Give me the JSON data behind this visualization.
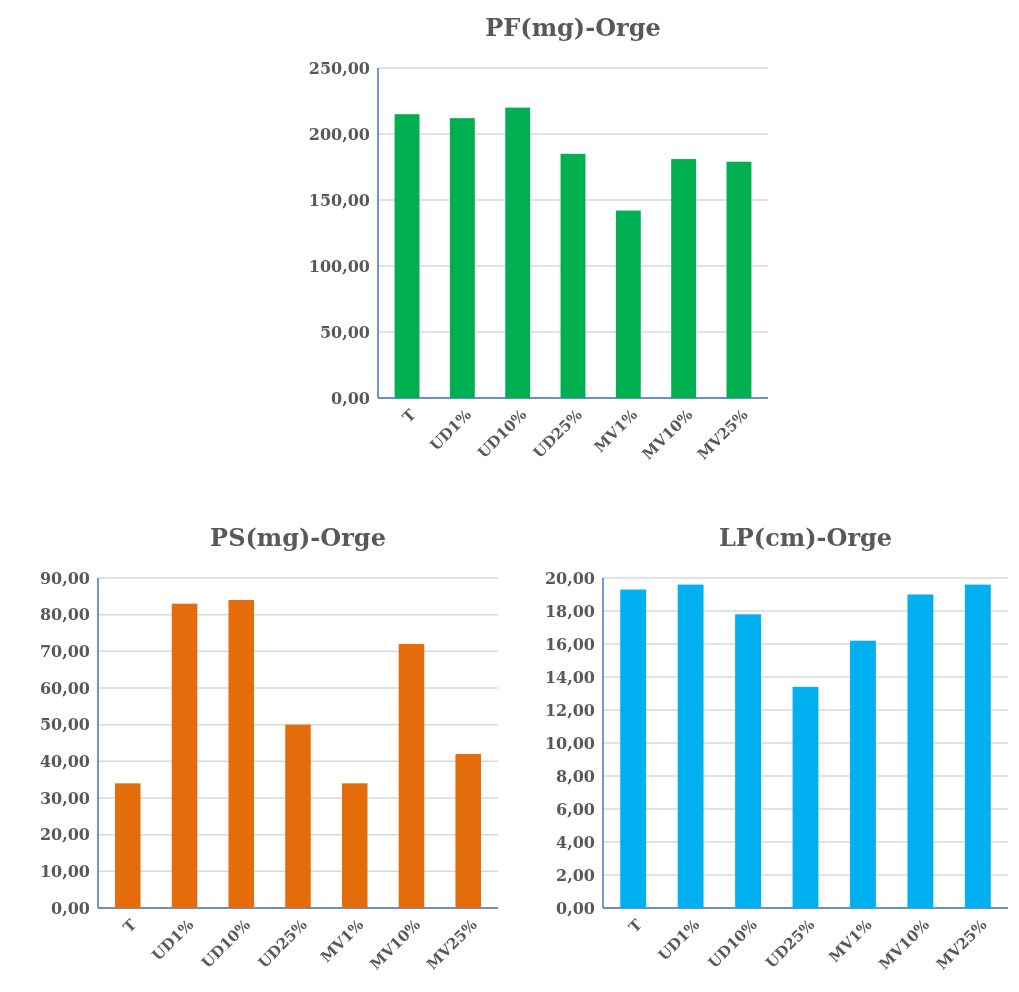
{
  "chart_data": [
    {
      "type": "bar",
      "title": "PF(mg)-Orge",
      "categories": [
        "T",
        "UD1%",
        "UD10%",
        "UD25%",
        "MV1%",
        "MV10%",
        "MV25%"
      ],
      "values": [
        215,
        212,
        220,
        185,
        142,
        181,
        179
      ],
      "color": "#00b050",
      "ylim": [
        0,
        250
      ],
      "yticks": [
        {
          "value": 0,
          "label": "0,00"
        },
        {
          "value": 50,
          "label": "50,00"
        },
        {
          "value": 100,
          "label": "100,00"
        },
        {
          "value": 150,
          "label": "150,00"
        },
        {
          "value": 200,
          "label": "200,00"
        },
        {
          "value": 250,
          "label": "250,00"
        }
      ],
      "grid": "y"
    },
    {
      "type": "bar",
      "title": "PS(mg)-Orge",
      "categories": [
        "T",
        "UD1%",
        "UD10%",
        "UD25%",
        "MV1%",
        "MV10%",
        "MV25%"
      ],
      "values": [
        34,
        83,
        84,
        50,
        34,
        72,
        42
      ],
      "color": "#e46c0a",
      "ylim": [
        0,
        90
      ],
      "yticks": [
        {
          "value": 0,
          "label": "0,00"
        },
        {
          "value": 10,
          "label": "10,00"
        },
        {
          "value": 20,
          "label": "20,00"
        },
        {
          "value": 30,
          "label": "30,00"
        },
        {
          "value": 40,
          "label": "40,00"
        },
        {
          "value": 50,
          "label": "50,00"
        },
        {
          "value": 60,
          "label": "60,00"
        },
        {
          "value": 70,
          "label": "70,00"
        },
        {
          "value": 80,
          "label": "80,00"
        },
        {
          "value": 90,
          "label": "90,00"
        }
      ],
      "grid": "y"
    },
    {
      "type": "bar",
      "title": "LP(cm)-Orge",
      "categories": [
        "T",
        "UD1%",
        "UD10%",
        "UD25%",
        "MV1%",
        "MV10%",
        "MV25%"
      ],
      "values": [
        19.3,
        19.6,
        17.8,
        13.4,
        16.2,
        19.0,
        19.6
      ],
      "color": "#00b0f0",
      "ylim": [
        0,
        20
      ],
      "yticks": [
        {
          "value": 0,
          "label": "0,00"
        },
        {
          "value": 2,
          "label": "2,00"
        },
        {
          "value": 4,
          "label": "4,00"
        },
        {
          "value": 6,
          "label": "6,00"
        },
        {
          "value": 8,
          "label": "8,00"
        },
        {
          "value": 10,
          "label": "10,00"
        },
        {
          "value": 12,
          "label": "12,00"
        },
        {
          "value": 14,
          "label": "14,00"
        },
        {
          "value": 16,
          "label": "16,00"
        },
        {
          "value": 18,
          "label": "18,00"
        },
        {
          "value": 20,
          "label": "20,00"
        }
      ],
      "grid": "y"
    }
  ]
}
